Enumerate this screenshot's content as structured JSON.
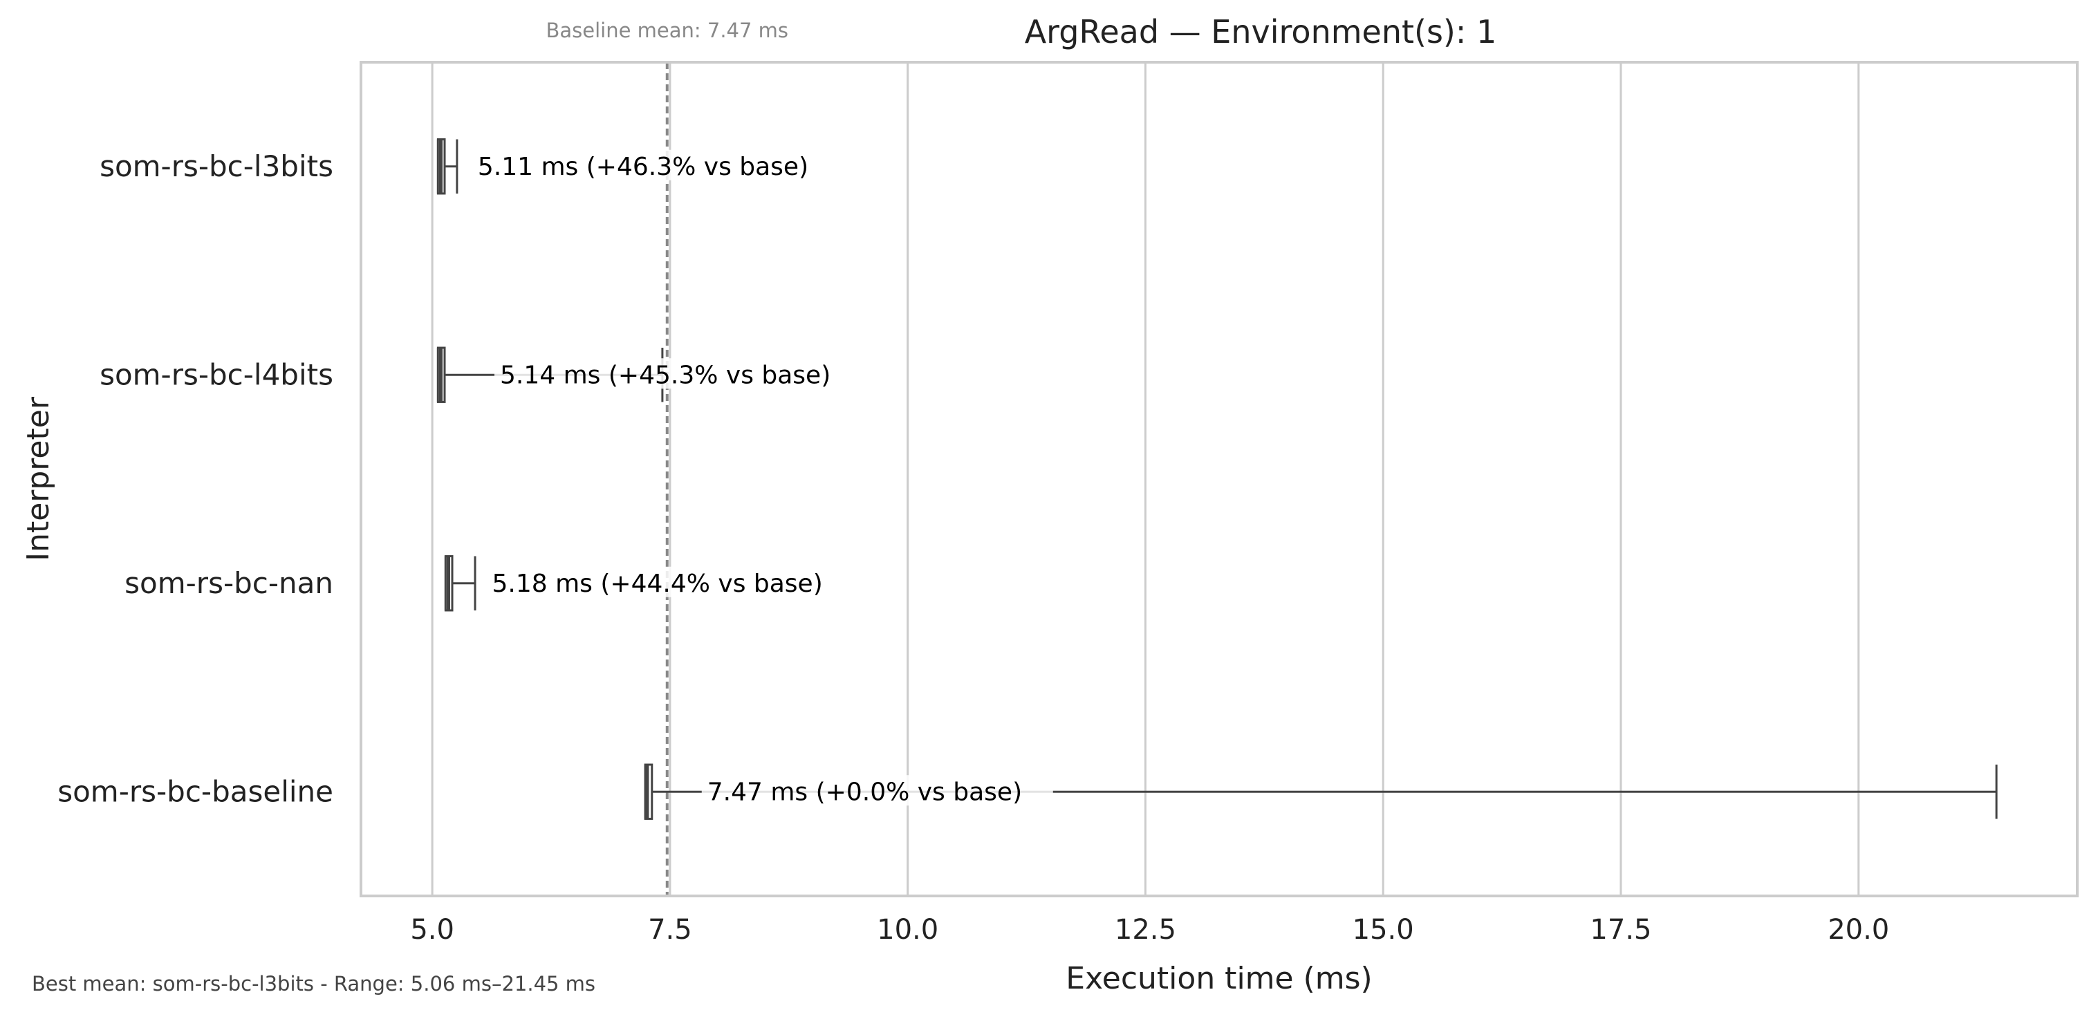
{
  "chart_data": {
    "type": "box",
    "orientation": "horizontal",
    "title": "ArgRead — Environment(s): 1",
    "xlabel": "Execution time (ms)",
    "ylabel": "Interpreter",
    "xlim": [
      4.25,
      22.3
    ],
    "xticks": [
      5.0,
      7.5,
      10.0,
      12.5,
      15.0,
      17.5,
      20.0
    ],
    "xtick_labels": [
      "5.0",
      "7.5",
      "10.0",
      "12.5",
      "15.0",
      "17.5",
      "20.0"
    ],
    "grid": "vertical",
    "categories": [
      "som-rs-bc-l3bits",
      "som-rs-bc-l4bits",
      "som-rs-bc-nan",
      "som-rs-bc-baseline"
    ],
    "boxes": [
      {
        "whisker_low": 5.06,
        "q1": 5.06,
        "median": 5.09,
        "q3": 5.13,
        "whisker_high": 5.26
      },
      {
        "whisker_low": 5.06,
        "q1": 5.06,
        "median": 5.09,
        "q3": 5.13,
        "whisker_high": 7.42
      },
      {
        "whisker_low": 5.14,
        "q1": 5.14,
        "median": 5.17,
        "q3": 5.21,
        "whisker_high": 5.45
      },
      {
        "whisker_low": 7.24,
        "q1": 7.24,
        "median": 7.26,
        "q3": 7.31,
        "whisker_high": 21.45
      }
    ],
    "means": [
      5.11,
      5.14,
      5.18,
      7.47
    ],
    "annotations": [
      "5.11 ms  (+46.3% vs base)",
      "5.14 ms  (+45.3% vs base)",
      "5.18 ms  (+44.4% vs base)",
      "7.47 ms  (+0.0% vs base)"
    ],
    "baseline": {
      "value": 7.47,
      "label": "Baseline mean: 7.47 ms",
      "color": "#888888"
    },
    "footnote": "Best mean: som-rs-bc-l3bits - Range: 5.06 ms–21.45 ms",
    "colors": {
      "box": "#444444",
      "grid": "#cccccc",
      "frame": "#cccccc",
      "text": "#222222"
    }
  }
}
